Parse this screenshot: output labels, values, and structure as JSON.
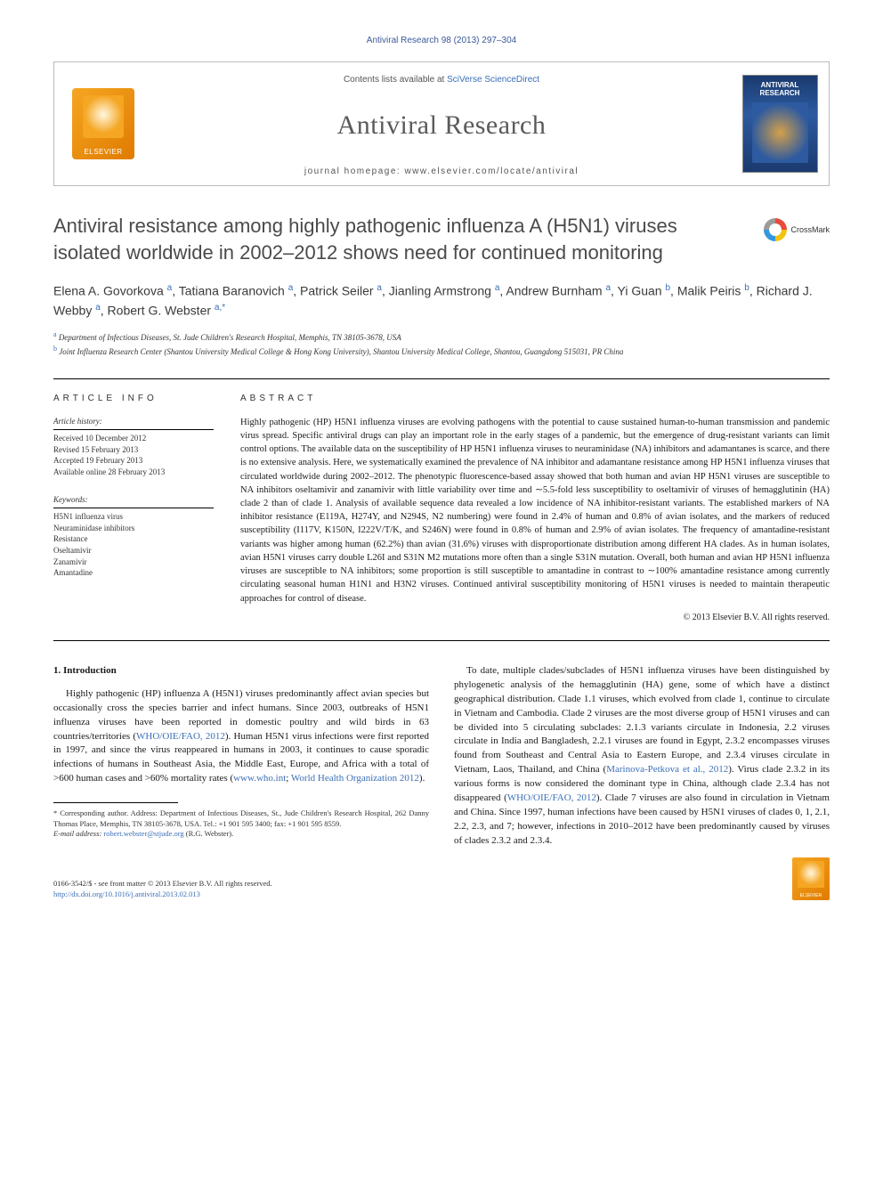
{
  "running_header": "Antiviral Research 98 (2013) 297–304",
  "masthead": {
    "contents_prefix": "Contents lists available at ",
    "contents_link": "SciVerse ScienceDirect",
    "journal_name": "Antiviral Research",
    "homepage_label": "journal homepage: www.elsevier.com/locate/antiviral",
    "publisher": "ELSEVIER",
    "cover_title": "ANTIVIRAL RESEARCH"
  },
  "article": {
    "title": "Antiviral resistance among highly pathogenic influenza A (H5N1) viruses isolated worldwide in 2002–2012 shows need for continued monitoring",
    "crossmark": "CrossMark",
    "authors_html": "Elena A. Govorkova <sup>a</sup>, Tatiana Baranovich <sup>a</sup>, Patrick Seiler <sup>a</sup>, Jianling Armstrong <sup>a</sup>, Andrew Burnham <sup>a</sup>, Yi Guan <sup>b</sup>, Malik Peiris <sup>b</sup>, Richard J. Webby <sup>a</sup>, Robert G. Webster <sup>a,*</sup>",
    "affiliations": {
      "a": "Department of Infectious Diseases, St. Jude Children's Research Hospital, Memphis, TN 38105-3678, USA",
      "b": "Joint Influenza Research Center (Shantou University Medical College & Hong Kong University), Shantou University Medical College, Shantou, Guangdong 515031, PR China"
    }
  },
  "info": {
    "heading": "ARTICLE INFO",
    "history_label": "Article history:",
    "history": [
      "Received 10 December 2012",
      "Revised 15 February 2013",
      "Accepted 19 February 2013",
      "Available online 28 February 2013"
    ],
    "keywords_label": "Keywords:",
    "keywords": [
      "H5N1 influenza virus",
      "Neuraminidase inhibitors",
      "Resistance",
      "Oseltamivir",
      "Zanamivir",
      "Amantadine"
    ]
  },
  "abstract": {
    "heading": "ABSTRACT",
    "text": "Highly pathogenic (HP) H5N1 influenza viruses are evolving pathogens with the potential to cause sustained human-to-human transmission and pandemic virus spread. Specific antiviral drugs can play an important role in the early stages of a pandemic, but the emergence of drug-resistant variants can limit control options. The available data on the susceptibility of HP H5N1 influenza viruses to neuraminidase (NA) inhibitors and adamantanes is scarce, and there is no extensive analysis. Here, we systematically examined the prevalence of NA inhibitor and adamantane resistance among HP H5N1 influenza viruses that circulated worldwide during 2002–2012. The phenotypic fluorescence-based assay showed that both human and avian HP H5N1 viruses are susceptible to NA inhibitors oseltamivir and zanamivir with little variability over time and ∼5.5-fold less susceptibility to oseltamivir of viruses of hemagglutinin (HA) clade 2 than of clade 1. Analysis of available sequence data revealed a low incidence of NA inhibitor-resistant variants. The established markers of NA inhibitor resistance (E119A, H274Y, and N294S, N2 numbering) were found in 2.4% of human and 0.8% of avian isolates, and the markers of reduced susceptibility (I117V, K150N, I222V/T/K, and S246N) were found in 0.8% of human and 2.9% of avian isolates. The frequency of amantadine-resistant variants was higher among human (62.2%) than avian (31.6%) viruses with disproportionate distribution among different HA clades. As in human isolates, avian H5N1 viruses carry double L26I and S31N M2 mutations more often than a single S31N mutation. Overall, both human and avian HP H5N1 influenza viruses are susceptible to NA inhibitors; some proportion is still susceptible to amantadine in contrast to ∼100% amantadine resistance among currently circulating seasonal human H1N1 and H3N2 viruses. Continued antiviral susceptibility monitoring of H5N1 viruses is needed to maintain therapeutic approaches for control of disease.",
    "copyright": "© 2013 Elsevier B.V. All rights reserved."
  },
  "body": {
    "section_heading": "1. Introduction",
    "col1_p1": "Highly pathogenic (HP) influenza A (H5N1) viruses predominantly affect avian species but occasionally cross the species barrier and infect humans. Since 2003, outbreaks of H5N1 influenza viruses have been reported in domestic poultry and wild birds in 63 countries/territories (<span class=\"ref-link\">WHO/OIE/FAO, 2012</span>). Human H5N1 virus infections were first reported in 1997, and since the virus reappeared in humans in 2003, it continues to cause sporadic infections of humans in Southeast Asia, the Middle East, Europe, and Africa with a total of >600 human cases and >60% mortality rates (<span class=\"ref-link\">www.who.int</span>; <span class=\"ref-link\">World Health Organization 2012</span>).",
    "col2_p1": "To date, multiple clades/subclades of H5N1 influenza viruses have been distinguished by phylogenetic analysis of the hemagglutinin (HA) gene, some of which have a distinct geographical distribution. Clade 1.1 viruses, which evolved from clade 1, continue to circulate in Vietnam and Cambodia. Clade 2 viruses are the most diverse group of H5N1 viruses and can be divided into 5 circulating subclades: 2.1.3 variants circulate in Indonesia, 2.2 viruses circulate in India and Bangladesh, 2.2.1 viruses are found in Egypt, 2.3.2 encompasses viruses found from Southeast and Central Asia to Eastern Europe, and 2.3.4 viruses circulate in Vietnam, Laos, Thailand, and China (<span class=\"ref-link\">Marinova-Petkova et al., 2012</span>). Virus clade 2.3.2 in its various forms is now considered the dominant type in China, although clade 2.3.4 has not disappeared (<span class=\"ref-link\">WHO/OIE/FAO, 2012</span>). Clade 7 viruses are also found in circulation in Vietnam and China. Since 1997, human infections have been caused by H5N1 viruses of clades 0, 1, 2.1, 2.2, 2.3, and 7; however, infections in 2010–2012 have been predominantly caused by viruses of clades 2.3.2 and 2.3.4."
  },
  "footnotes": {
    "corr": "* Corresponding author. Address: Department of Infectious Diseases, St., Jude Children's Research Hospital, 262 Danny Thomas Place, Memphis, TN 38105-3678, USA. Tel.: +1 901 595 3400; fax: +1 901 595 8559.",
    "email_label": "E-mail address:",
    "email": "robert.webster@stjude.org",
    "email_suffix": "(R.G. Webster)."
  },
  "footer": {
    "line1": "0166-3542/$ - see front matter © 2013 Elsevier B.V. All rights reserved.",
    "doi": "http://dx.doi.org/10.1016/j.antiviral.2013.02.013"
  },
  "colors": {
    "link": "#3b6fb6",
    "text": "#1a1a1a",
    "heading_gray": "#4a4a4a",
    "elsevier_orange": "#e07b00",
    "cover_blue": "#1a3a6e"
  }
}
